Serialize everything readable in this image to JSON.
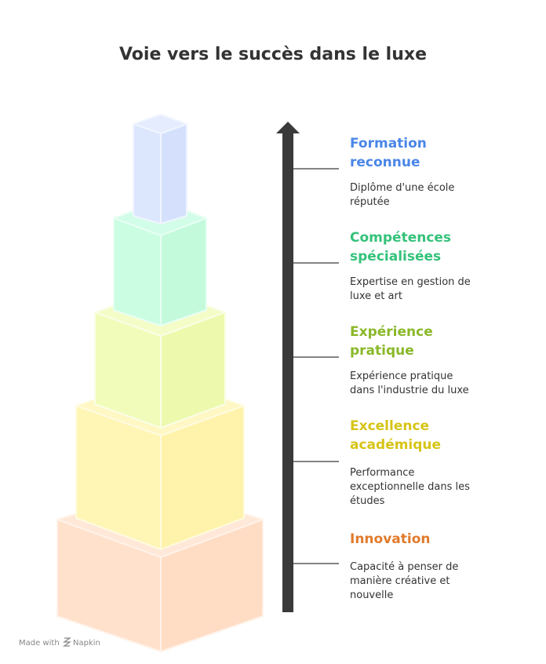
{
  "title": "Voie vers le succès dans le luxe",
  "items": [
    {
      "heading": [
        "Formation",
        "reconnue"
      ],
      "description": [
        "Diplôme d'une école",
        "réputée"
      ],
      "color": "#4a86e8"
    },
    {
      "heading": [
        "Compétences",
        "spécialisées"
      ],
      "description": [
        "Expertise en gestion de",
        "luxe et art"
      ],
      "color": "#34c27a"
    },
    {
      "heading": [
        "Expérience",
        "pratique"
      ],
      "description": [
        "Expérience pratique",
        "dans l'industrie du luxe"
      ],
      "color": "#8ab82a"
    },
    {
      "heading": [
        "Excellence",
        "académique"
      ],
      "description": [
        "Performance",
        "exceptionnelle dans les",
        "études"
      ],
      "color": "#d6c416"
    },
    {
      "heading": [
        "Innovation"
      ],
      "description": [
        "Capacité à penser de",
        "manière créative et",
        "nouvelle"
      ],
      "color": "#e07a2c"
    }
  ],
  "footer": {
    "made_with": "Made with",
    "brand": "Napkin"
  }
}
